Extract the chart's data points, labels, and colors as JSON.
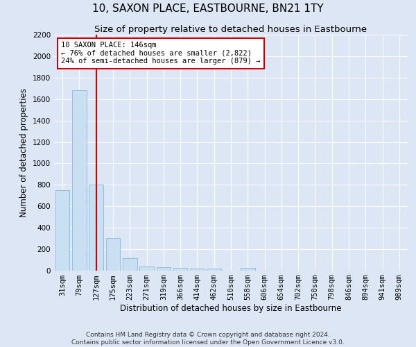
{
  "title": "10, SAXON PLACE, EASTBOURNE, BN21 1TY",
  "subtitle": "Size of property relative to detached houses in Eastbourne",
  "xlabel": "Distribution of detached houses by size in Eastbourne",
  "ylabel": "Number of detached properties",
  "footnote1": "Contains HM Land Registry data © Crown copyright and database right 2024.",
  "footnote2": "Contains public sector information licensed under the Open Government Licence v3.0.",
  "bins": [
    "31sqm",
    "79sqm",
    "127sqm",
    "175sqm",
    "223sqm",
    "271sqm",
    "319sqm",
    "366sqm",
    "414sqm",
    "462sqm",
    "510sqm",
    "558sqm",
    "606sqm",
    "654sqm",
    "702sqm",
    "750sqm",
    "798sqm",
    "846sqm",
    "894sqm",
    "941sqm",
    "989sqm"
  ],
  "values": [
    750,
    1680,
    800,
    305,
    115,
    40,
    30,
    25,
    20,
    20,
    0,
    25,
    0,
    0,
    0,
    0,
    0,
    0,
    0,
    0,
    0
  ],
  "bar_color": "#c9dff2",
  "bar_edge_color": "#8ab8d8",
  "vline_x": 2,
  "vline_color": "#cc0000",
  "annotation_text": "10 SAXON PLACE: 146sqm\n← 76% of detached houses are smaller (2,822)\n24% of semi-detached houses are larger (879) →",
  "annotation_box_color": "#ffffff",
  "annotation_box_edge": "#cc0000",
  "ylim": [
    0,
    2200
  ],
  "yticks": [
    0,
    200,
    400,
    600,
    800,
    1000,
    1200,
    1400,
    1600,
    1800,
    2000,
    2200
  ],
  "bg_color": "#dce6f5",
  "plot_bg_color": "#dce6f5",
  "title_fontsize": 11,
  "subtitle_fontsize": 9.5,
  "axis_label_fontsize": 8.5,
  "tick_fontsize": 7.5,
  "footnote_fontsize": 6.5
}
